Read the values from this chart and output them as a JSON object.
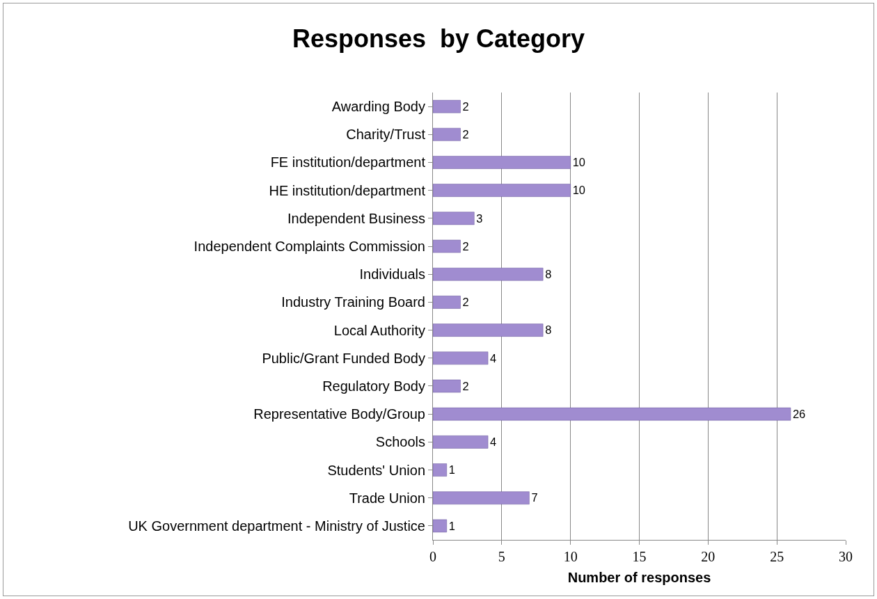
{
  "chart_data": {
    "type": "bar",
    "orientation": "horizontal",
    "title": "Responses  by Category",
    "xlabel": "Number of responses",
    "categories": [
      "Awarding Body",
      "Charity/Trust",
      "FE institution/department",
      "HE institution/department",
      "Independent Business",
      "Independent Complaints Commission",
      "Individuals",
      "Industry Training Board",
      "Local Authority",
      "Public/Grant Funded Body",
      "Regulatory Body",
      "Representative Body/Group",
      "Schools",
      "Students' Union",
      "Trade Union",
      "UK Government department - Ministry of Justice"
    ],
    "values": [
      2,
      2,
      10,
      10,
      3,
      2,
      8,
      2,
      8,
      4,
      2,
      26,
      4,
      1,
      7,
      1
    ],
    "color": "#a08cd0",
    "xlim": [
      0,
      30
    ],
    "xticks": [
      0,
      5,
      10,
      15,
      20,
      25,
      30
    ],
    "grid": "x",
    "data_labels": true
  }
}
